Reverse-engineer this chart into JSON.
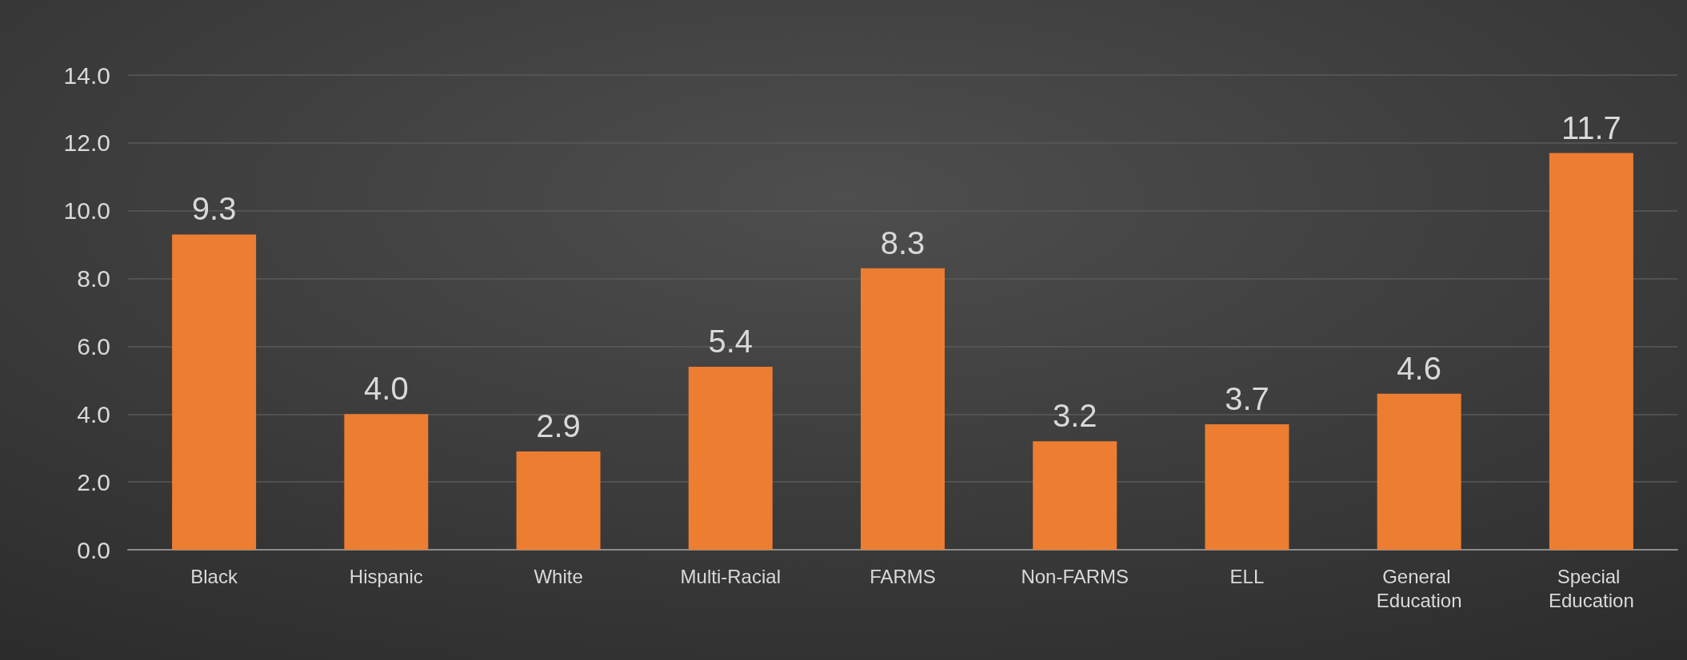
{
  "chart_data": {
    "type": "bar",
    "categories": [
      "Black",
      "Hispanic",
      "White",
      "Multi-Racial",
      "FARMS",
      "Non-FARMS",
      "ELL",
      "General Education",
      "Special Education"
    ],
    "values": [
      9.3,
      4.0,
      2.9,
      5.4,
      8.3,
      3.2,
      3.7,
      4.6,
      11.7
    ],
    "value_labels": [
      "9.3",
      "4.0",
      "2.9",
      "5.4",
      "8.3",
      "3.2",
      "3.7",
      "4.6",
      "11.7"
    ],
    "color": "#ed7d31",
    "ylim": [
      0,
      14
    ],
    "yticks": [
      {
        "value": 0,
        "label": "0.0"
      },
      {
        "value": 2,
        "label": "2.0"
      },
      {
        "value": 4,
        "label": "4.0"
      },
      {
        "value": 6,
        "label": "6.0"
      },
      {
        "value": 8,
        "label": "8.0"
      },
      {
        "value": 10,
        "label": "10.0"
      },
      {
        "value": 12,
        "label": "12.0"
      },
      {
        "value": 14,
        "label": "14.0"
      }
    ],
    "grid": true
  }
}
